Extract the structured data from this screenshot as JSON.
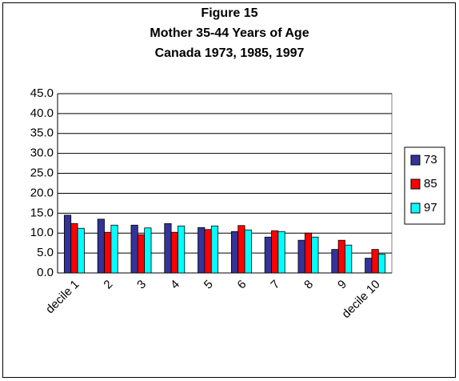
{
  "chart_data": {
    "type": "bar",
    "title": [
      "Figure 15",
      "Mother 35-44 Years of Age",
      "Canada 1973, 1985, 1997"
    ],
    "categories": [
      "decile 1",
      "2",
      "3",
      "4",
      "5",
      "6",
      "7",
      "8",
      "9",
      "decile 10"
    ],
    "series": [
      {
        "name": "73",
        "color": "#333399",
        "values": [
          14.5,
          13.5,
          12.0,
          12.4,
          11.4,
          10.4,
          9.0,
          8.2,
          5.9,
          3.7
        ]
      },
      {
        "name": "85",
        "color": "#ff0000",
        "values": [
          12.4,
          10.2,
          9.6,
          10.2,
          10.9,
          11.9,
          10.6,
          10.0,
          8.2,
          5.9
        ]
      },
      {
        "name": "97",
        "color": "#00ffff",
        "values": [
          11.2,
          12.0,
          11.3,
          11.8,
          11.8,
          10.8,
          10.4,
          9.0,
          7.0,
          4.7
        ]
      }
    ],
    "ylim": [
      0,
      45
    ],
    "yticks": [
      {
        "value": 0,
        "label": "0.0"
      },
      {
        "value": 5,
        "label": "5.0"
      },
      {
        "value": 10,
        "label": "10.0"
      },
      {
        "value": 15,
        "label": "15.0"
      },
      {
        "value": 20,
        "label": "20.0"
      },
      {
        "value": 25,
        "label": "25.0"
      },
      {
        "value": 30,
        "label": "30.0"
      },
      {
        "value": 35,
        "label": "35.0"
      },
      {
        "value": 40,
        "label": "40.0"
      },
      {
        "value": 45,
        "label": "45.0"
      }
    ],
    "grid": true,
    "legend": "right"
  }
}
